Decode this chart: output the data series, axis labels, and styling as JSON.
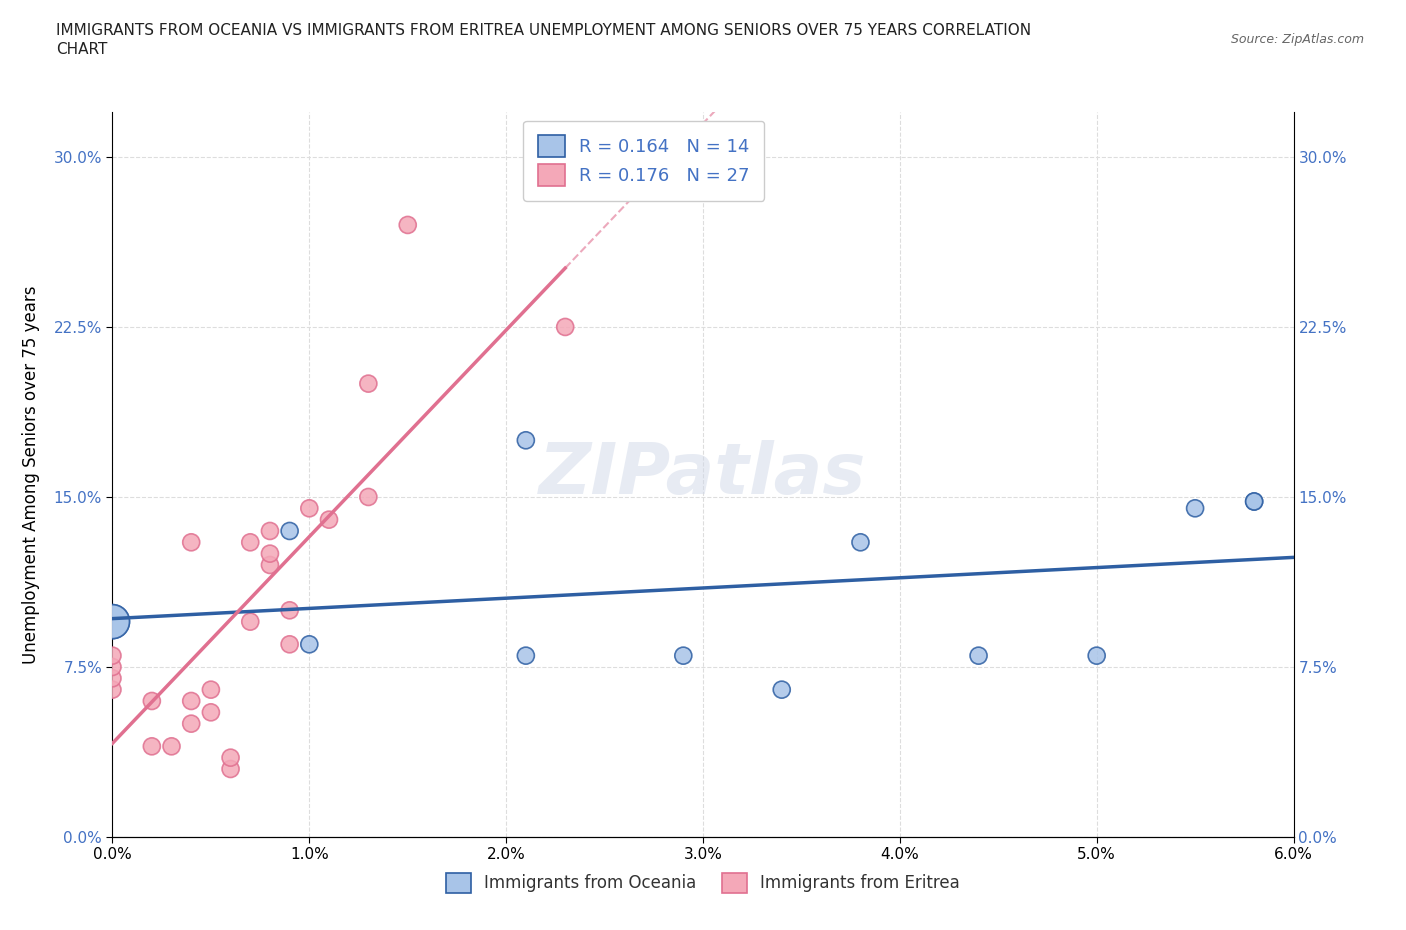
{
  "title_line1": "IMMIGRANTS FROM OCEANIA VS IMMIGRANTS FROM ERITREA UNEMPLOYMENT AMONG SENIORS OVER 75 YEARS CORRELATION",
  "title_line2": "CHART",
  "source_text": "Source: ZipAtlas.com",
  "ylabel": "Unemployment Among Seniors over 75 years",
  "xlim": [
    0.0,
    0.06
  ],
  "ylim": [
    0.0,
    0.32
  ],
  "x_ticks": [
    0.0,
    0.01,
    0.02,
    0.03,
    0.04,
    0.05,
    0.06
  ],
  "x_tick_labels": [
    "0.0%",
    "1.0%",
    "2.0%",
    "3.0%",
    "4.0%",
    "5.0%",
    "6.0%"
  ],
  "y_ticks": [
    0.0,
    0.075,
    0.15,
    0.225,
    0.3
  ],
  "y_tick_labels": [
    "0.0%",
    "7.5%",
    "15.0%",
    "22.5%",
    "30.0%"
  ],
  "grid_color": "#dddddd",
  "background_color": "#ffffff",
  "watermark_text": "ZIPatlas",
  "r_color": "#4472c4",
  "oceania_color": "#a8c4e8",
  "eritrea_color": "#f4a8b8",
  "oceania_line_color": "#2e5fa3",
  "eritrea_line_color": "#e07090",
  "oceania_scatter_x": [
    0.0,
    0.0,
    0.009,
    0.01,
    0.021,
    0.021,
    0.029,
    0.034,
    0.038,
    0.044,
    0.05,
    0.055,
    0.058,
    0.058
  ],
  "oceania_scatter_y": [
    0.095,
    0.095,
    0.135,
    0.085,
    0.08,
    0.175,
    0.08,
    0.065,
    0.13,
    0.08,
    0.08,
    0.145,
    0.148,
    0.148
  ],
  "oceania_sizes": [
    600,
    600,
    150,
    150,
    150,
    150,
    150,
    150,
    150,
    150,
    150,
    150,
    150,
    150
  ],
  "eritrea_scatter_x": [
    0.0,
    0.0,
    0.0,
    0.0,
    0.002,
    0.002,
    0.003,
    0.004,
    0.004,
    0.004,
    0.005,
    0.005,
    0.006,
    0.006,
    0.007,
    0.007,
    0.008,
    0.008,
    0.008,
    0.009,
    0.009,
    0.01,
    0.011,
    0.013,
    0.013,
    0.015,
    0.023
  ],
  "eritrea_scatter_y": [
    0.065,
    0.07,
    0.075,
    0.08,
    0.04,
    0.06,
    0.04,
    0.05,
    0.06,
    0.13,
    0.055,
    0.065,
    0.03,
    0.035,
    0.13,
    0.095,
    0.12,
    0.125,
    0.135,
    0.085,
    0.1,
    0.145,
    0.14,
    0.2,
    0.15,
    0.27,
    0.225
  ],
  "eritrea_sizes": [
    150,
    150,
    150,
    150,
    150,
    150,
    150,
    150,
    150,
    150,
    150,
    150,
    150,
    150,
    150,
    150,
    150,
    150,
    150,
    150,
    150,
    150,
    150,
    150,
    150,
    150,
    150
  ],
  "legend_label_oceania": "Immigrants from Oceania",
  "legend_label_eritrea": "Immigrants from Eritrea"
}
